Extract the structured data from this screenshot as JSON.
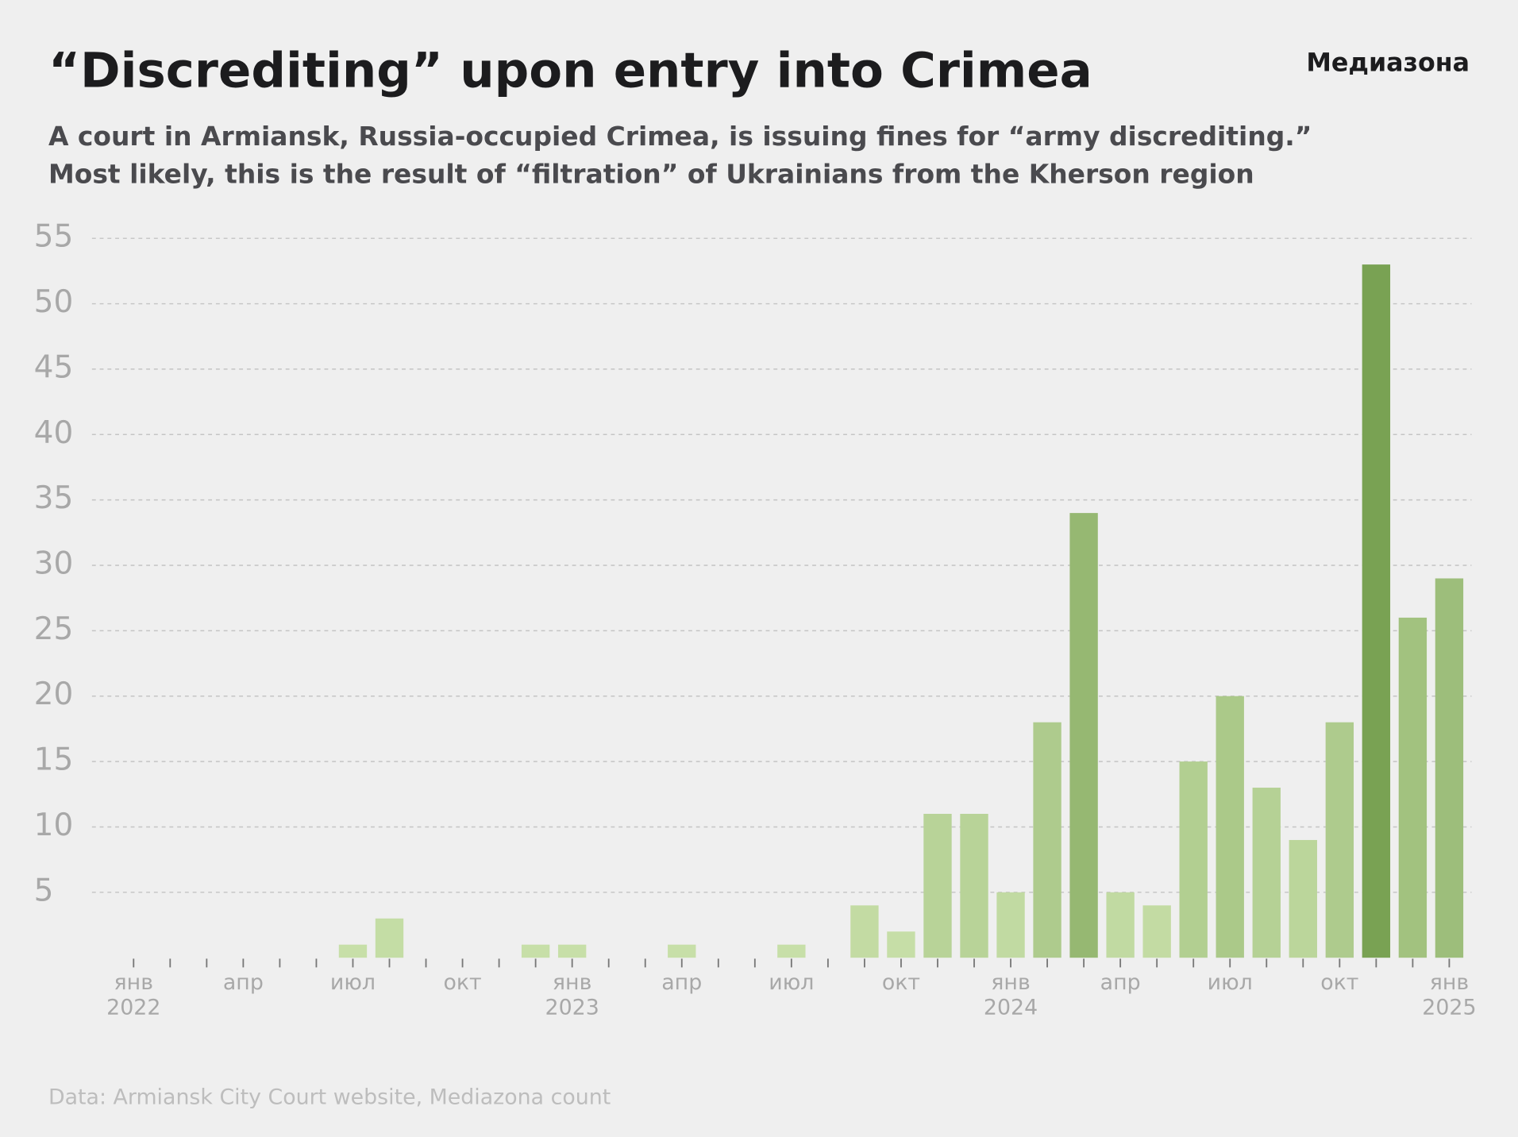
{
  "chart_data": {
    "type": "bar",
    "title": "“Discrediting” upon entry into Crimea",
    "subtitle": [
      "A court in Armiansk, Russia-occupied Crimea, is issuing fines for “army discrediting.”",
      "Most likely, this is the result of “filtration” of Ukrainians from the Kherson region"
    ],
    "brand": "Медиазона",
    "source": "Data: Armiansk City Court website, Mediazona count",
    "categories": [
      "янв 2022",
      null,
      null,
      "апр",
      null,
      null,
      "июл",
      null,
      null,
      "окт",
      null,
      null,
      "янв 2023",
      null,
      null,
      "апр",
      null,
      null,
      "июл",
      null,
      null,
      "окт",
      null,
      null,
      "янв 2024",
      null,
      null,
      "апр",
      null,
      null,
      "июл",
      null,
      null,
      "окт",
      null,
      null,
      "янв 2025"
    ],
    "values": [
      0,
      0,
      0,
      0,
      0,
      0,
      1,
      3,
      0,
      0,
      0,
      1,
      1,
      0,
      0,
      1,
      0,
      0,
      1,
      0,
      4,
      2,
      11,
      11,
      5,
      18,
      34,
      5,
      4,
      15,
      20,
      13,
      9,
      18,
      53,
      26,
      29
    ],
    "color_scale": [
      "#c9e0aa",
      "#76a050"
    ],
    "ylim": [
      0,
      55
    ],
    "yticks": [
      5,
      10,
      15,
      20,
      25,
      30,
      35,
      40,
      45,
      50,
      55
    ],
    "grid": true
  }
}
